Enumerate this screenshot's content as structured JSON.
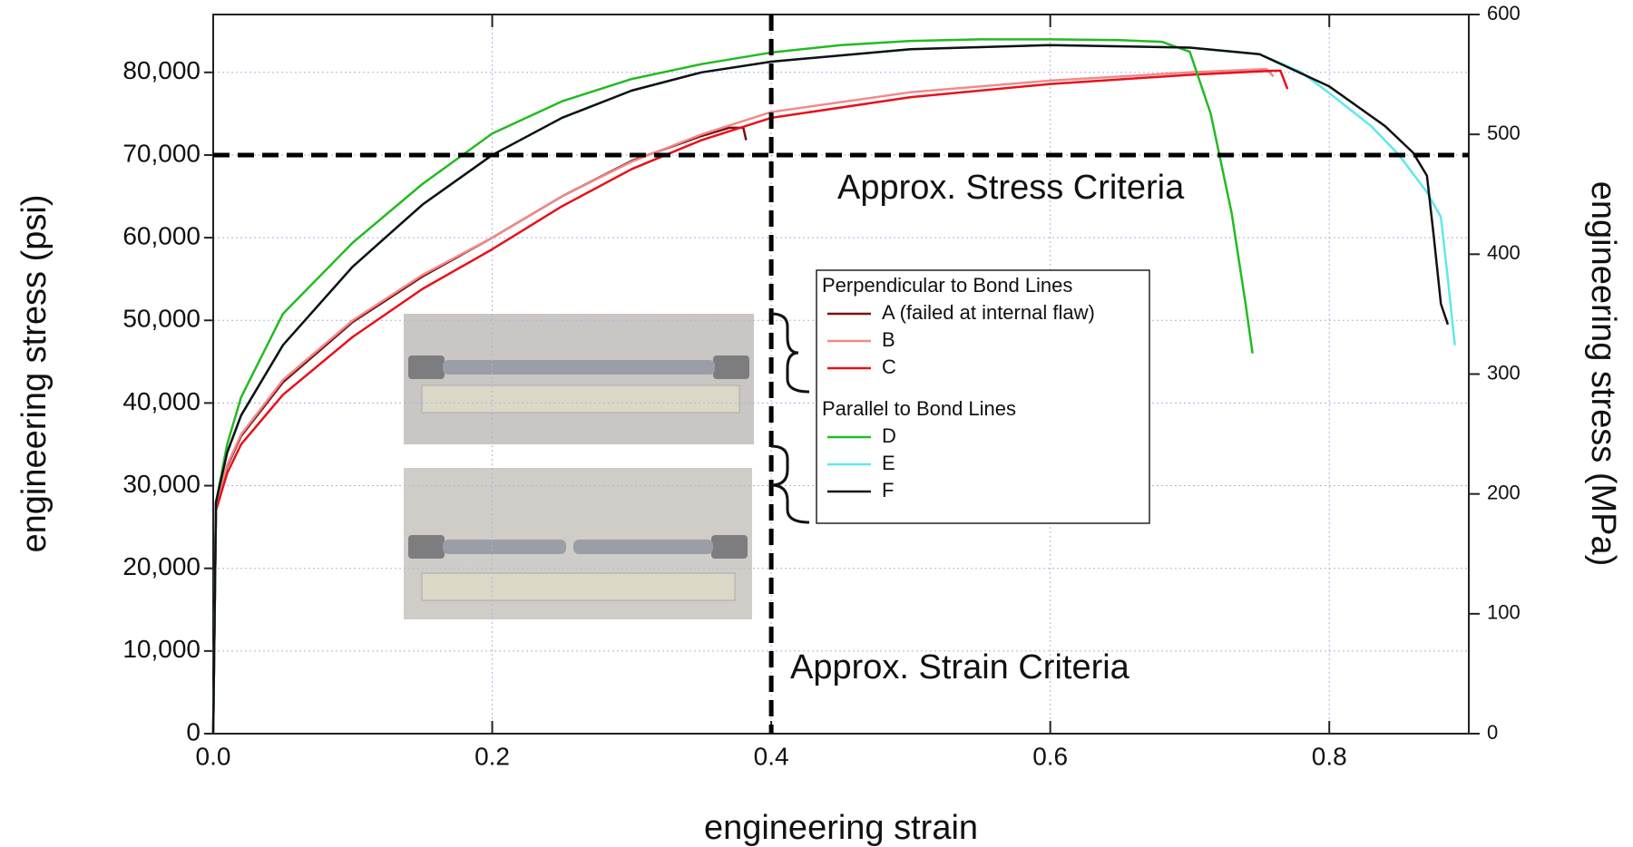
{
  "chart_data": {
    "type": "line",
    "xlabel": "engineering strain",
    "ylabel": "engineering stress (psi)",
    "y2label": "engineering stress (MPa)",
    "xlim": [
      0,
      0.9
    ],
    "ylim": [
      0,
      87000
    ],
    "y2lim": [
      0,
      600
    ],
    "xticks": [
      {
        "value": 0,
        "label": "0.0"
      },
      0.2,
      0.4,
      0.6,
      0.8
    ],
    "yticks": [
      0,
      {
        "value": 10000,
        "label": "10,000"
      },
      {
        "value": 20000,
        "label": "20,000"
      },
      {
        "value": 30000,
        "label": "30,000"
      },
      {
        "value": 40000,
        "label": "40,000"
      },
      {
        "value": 50000,
        "label": "50,000"
      },
      {
        "value": 60000,
        "label": "60,000"
      },
      {
        "value": 70000,
        "label": "70,000"
      },
      {
        "value": 80000,
        "label": "80,000"
      }
    ],
    "y2ticks": [
      0,
      100,
      200,
      300,
      400,
      500,
      600
    ],
    "grid": true,
    "reference_lines": [
      {
        "axis": "y",
        "value": 70000,
        "label": "Approx. Stress Criteria"
      },
      {
        "axis": "x",
        "value": 0.4,
        "label": "Approx. Strain Criteria"
      }
    ],
    "series": [
      {
        "name": "A (failed at internal flaw)",
        "group": "Perpendicular to Bond Lines",
        "color": "#7a1010",
        "x": [
          0,
          0.002,
          0.01,
          0.02,
          0.05,
          0.1,
          0.15,
          0.2,
          0.25,
          0.3,
          0.35,
          0.37,
          0.38,
          0.382
        ],
        "values": [
          0,
          27500,
          32300,
          36000,
          42500,
          49800,
          55300,
          60000,
          65000,
          69300,
          72300,
          73300,
          73300,
          71800
        ]
      },
      {
        "name": "B",
        "group": "Perpendicular to Bond Lines",
        "color": "#f08a8a",
        "x": [
          0,
          0.002,
          0.01,
          0.02,
          0.05,
          0.1,
          0.15,
          0.2,
          0.25,
          0.3,
          0.35,
          0.4,
          0.5,
          0.6,
          0.7,
          0.755,
          0.76
        ],
        "values": [
          0,
          27500,
          32500,
          36200,
          42800,
          50000,
          55500,
          60000,
          65000,
          69200,
          72500,
          75200,
          77600,
          79000,
          80000,
          80400,
          79500
        ]
      },
      {
        "name": "C",
        "group": "Perpendicular to Bond Lines",
        "color": "#e8101a",
        "x": [
          0,
          0.002,
          0.01,
          0.02,
          0.05,
          0.1,
          0.15,
          0.2,
          0.25,
          0.3,
          0.35,
          0.4,
          0.5,
          0.6,
          0.7,
          0.76,
          0.765,
          0.77
        ],
        "values": [
          0,
          27000,
          31500,
          35000,
          41000,
          48000,
          53800,
          58600,
          63800,
          68300,
          71800,
          74500,
          77000,
          78600,
          79700,
          80200,
          80200,
          78000
        ]
      },
      {
        "name": "D",
        "group": "Parallel to Bond Lines",
        "color": "#22bb22",
        "x": [
          0,
          0.002,
          0.01,
          0.02,
          0.05,
          0.1,
          0.15,
          0.2,
          0.25,
          0.3,
          0.35,
          0.4,
          0.45,
          0.5,
          0.55,
          0.6,
          0.65,
          0.68,
          0.7,
          0.715,
          0.73,
          0.74,
          0.745
        ],
        "values": [
          0,
          28000,
          35000,
          40700,
          50800,
          59400,
          66500,
          72600,
          76500,
          79200,
          81000,
          82400,
          83300,
          83800,
          84000,
          84000,
          83900,
          83700,
          82500,
          75000,
          63000,
          52000,
          46000
        ]
      },
      {
        "name": "E",
        "group": "Parallel to Bond Lines",
        "color": "#5ee8ee",
        "x": [
          0,
          0.002,
          0.01,
          0.02,
          0.05,
          0.1,
          0.15,
          0.2,
          0.25,
          0.3,
          0.35,
          0.4,
          0.5,
          0.6,
          0.7,
          0.75,
          0.78,
          0.8,
          0.83,
          0.85,
          0.87,
          0.88,
          0.885,
          0.89
        ],
        "values": [
          0,
          28000,
          34000,
          38500,
          47000,
          56500,
          64000,
          70000,
          74500,
          77800,
          80000,
          81300,
          82800,
          83300,
          83000,
          82200,
          80000,
          77500,
          73500,
          70000,
          65500,
          62500,
          55000,
          47000
        ]
      },
      {
        "name": "F",
        "group": "Parallel to Bond Lines",
        "color": "#111111",
        "x": [
          0,
          0.002,
          0.01,
          0.02,
          0.05,
          0.1,
          0.15,
          0.2,
          0.25,
          0.3,
          0.35,
          0.4,
          0.5,
          0.6,
          0.7,
          0.75,
          0.8,
          0.84,
          0.86,
          0.87,
          0.875,
          0.88,
          0.885
        ],
        "values": [
          0,
          28000,
          34000,
          38500,
          47000,
          56500,
          64000,
          70000,
          74500,
          77800,
          80000,
          81300,
          82800,
          83300,
          83000,
          82200,
          78300,
          73500,
          70300,
          67500,
          60000,
          52000,
          49500
        ]
      }
    ]
  }
}
